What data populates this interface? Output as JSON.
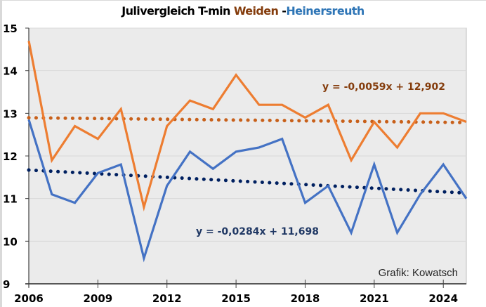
{
  "chart_data": {
    "type": "line",
    "title_parts": {
      "prefix": "Julivergleich T-min ",
      "series1": "Weiden",
      "separator": " -",
      "series2": "Heinersreuth"
    },
    "xlabel": "",
    "ylabel": "",
    "x": [
      2006,
      2007,
      2008,
      2009,
      2010,
      2011,
      2012,
      2013,
      2014,
      2015,
      2016,
      2017,
      2018,
      2019,
      2020,
      2021,
      2022,
      2023,
      2024,
      2025
    ],
    "xlim": [
      2006,
      2025
    ],
    "ylim": [
      9,
      15
    ],
    "x_ticks": [
      2006,
      2009,
      2012,
      2015,
      2018,
      2021,
      2024
    ],
    "y_ticks": [
      9,
      10,
      11,
      12,
      13,
      14,
      15
    ],
    "grid": true,
    "series": [
      {
        "name": "Weiden",
        "color": "#ED7D31",
        "values": [
          14.7,
          11.9,
          12.7,
          12.4,
          13.1,
          10.8,
          12.7,
          13.3,
          13.1,
          13.9,
          13.2,
          13.2,
          12.9,
          13.2,
          11.9,
          12.8,
          12.2,
          13.0,
          13.0,
          12.8
        ],
        "trendline": {
          "slope": -0.0059,
          "intercept": 12.902,
          "color": "#C8601A",
          "label": "y = -0,0059x + 12,902",
          "label_color": "#843C0C"
        }
      },
      {
        "name": "Heinersreuth",
        "color": "#4472C4",
        "values": [
          12.85,
          11.1,
          10.9,
          11.6,
          11.8,
          9.6,
          11.3,
          12.1,
          11.7,
          12.1,
          12.2,
          12.4,
          10.9,
          11.3,
          10.2,
          11.8,
          10.2,
          11.1,
          11.8,
          11.0
        ],
        "trendline": {
          "slope": -0.0284,
          "intercept": 11.698,
          "color": "#002060",
          "label": "y = -0,0284x + 11,698",
          "label_color": "#203864"
        }
      }
    ],
    "annotation": "Grafik: Kowatsch",
    "plot_background": "#EBEBEB",
    "legend": "none"
  }
}
